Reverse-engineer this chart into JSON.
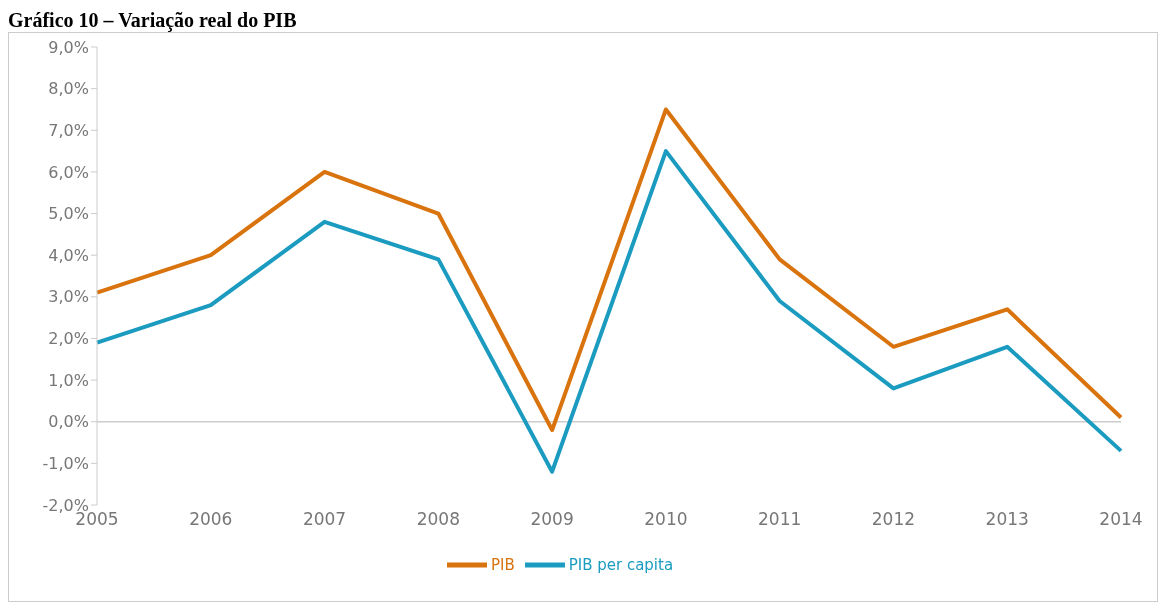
{
  "chart_data": {
    "type": "line",
    "title": "Gráfico 10 – Variação real do PIB",
    "categories": [
      "2005",
      "2006",
      "2007",
      "2008",
      "2009",
      "2010",
      "2011",
      "2012",
      "2013",
      "2014"
    ],
    "series": [
      {
        "name": "PIB",
        "color": "#d9730d",
        "values": [
          3.1,
          4.0,
          6.0,
          5.0,
          -0.2,
          7.5,
          3.9,
          1.8,
          2.7,
          0.1
        ]
      },
      {
        "name": "PIB per capita",
        "color": "#1a9bbf",
        "values": [
          1.9,
          2.8,
          4.8,
          3.9,
          -1.2,
          6.5,
          2.9,
          0.8,
          1.8,
          -0.7
        ]
      }
    ],
    "ylim": [
      -2,
      9
    ],
    "yticks": [
      {
        "value": -2,
        "label": "-2,0%"
      },
      {
        "value": -1,
        "label": "-1,0%"
      },
      {
        "value": 0,
        "label": "0,0%"
      },
      {
        "value": 1,
        "label": "1,0%"
      },
      {
        "value": 2,
        "label": "2,0%"
      },
      {
        "value": 3,
        "label": "3,0%"
      },
      {
        "value": 4,
        "label": "4,0%"
      },
      {
        "value": 5,
        "label": "5,0%"
      },
      {
        "value": 6,
        "label": "6,0%"
      },
      {
        "value": 7,
        "label": "7,0%"
      },
      {
        "value": 8,
        "label": "8,0%"
      },
      {
        "value": 9,
        "label": "9,0%"
      }
    ],
    "ref_lines": [
      {
        "axis": "y",
        "value": 0,
        "color": "#cccccc"
      }
    ],
    "grid": false,
    "legend": "bottom",
    "marker": "none",
    "line_style": "solid"
  }
}
